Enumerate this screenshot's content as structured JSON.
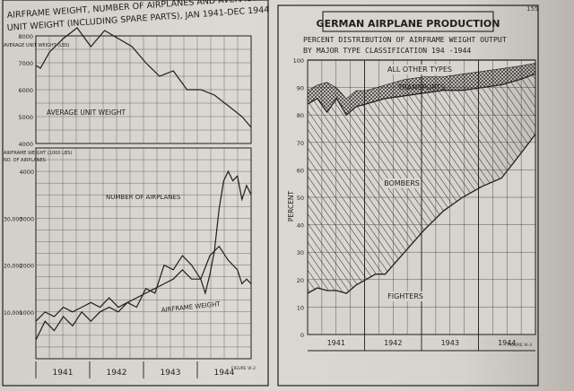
{
  "page_number": "155",
  "colors": {
    "ink": "#1e1e1e",
    "paper": "#d8d5ce",
    "edge": "#5a5753"
  },
  "chart_data": [
    {
      "type": "line",
      "title": "AIRFRAME WEIGHT, NUMBER OF AIRPLANES AND AVERAGE UNIT WEIGHT (INCLUDING SPARE PARTS), JAN 1941-DEC 1944",
      "figure": "FIGURE VI-2",
      "top_panel": {
        "ylabel": "AVERAGE UNIT WEIGHT (LBS)",
        "ylim": [
          4000,
          8000
        ],
        "y_ticks": [
          "8000",
          "7000",
          "6000",
          "5000",
          "4000"
        ],
        "series": [
          {
            "name": "AVERAGE UNIT WEIGHT",
            "x": [
              0,
              1,
              3,
              6,
              9,
              12,
              15,
              18,
              21,
              24,
              27,
              30,
              33,
              36,
              39,
              42,
              45,
              47
            ],
            "values": [
              6900,
              6800,
              7400,
              7900,
              8300,
              7600,
              8200,
              7900,
              7600,
              7000,
              6500,
              6700,
              6000,
              6000,
              5800,
              5400,
              5000,
              4600
            ]
          }
        ]
      },
      "bottom_panel": {
        "ylabel_left": "AIRFRAME WEIGHT (1000 LBS)",
        "ylabel_right": "NO. OF AIRPLANES",
        "y_ticks_left": [
          "10,000",
          "20,000",
          "30,000"
        ],
        "y_ticks_right": [
          "1000",
          "2000",
          "3000",
          "4000"
        ],
        "ylim": [
          0,
          4500
        ],
        "series": [
          {
            "name": "NUMBER OF AIRPLANES",
            "x": [
              0,
              2,
              4,
              6,
              8,
              10,
              12,
              14,
              16,
              18,
              20,
              22,
              24,
              26,
              28,
              30,
              32,
              34,
              36,
              37,
              38,
              39,
              40,
              41,
              42,
              43,
              44,
              45,
              46,
              47
            ],
            "values": [
              400,
              800,
              600,
              900,
              700,
              1000,
              800,
              1000,
              1100,
              1000,
              1200,
              1100,
              1500,
              1400,
              2000,
              1900,
              2200,
              2000,
              1700,
              1400,
              1800,
              2300,
              3200,
              3800,
              4000,
              3800,
              3900,
              3400,
              3700,
              3500
            ]
          },
          {
            "name": "AIRFRAME WEIGHT",
            "x": [
              0,
              2,
              4,
              6,
              8,
              10,
              12,
              14,
              16,
              18,
              20,
              22,
              24,
              26,
              28,
              30,
              32,
              34,
              36,
              38,
              40,
              42,
              44,
              45,
              46,
              47
            ],
            "values": [
              800,
              1000,
              900,
              1100,
              1000,
              1100,
              1200,
              1100,
              1300,
              1100,
              1200,
              1300,
              1400,
              1500,
              1600,
              1700,
              1900,
              1700,
              1700,
              2200,
              2400,
              2100,
              1900,
              1600,
              1700,
              1600
            ]
          }
        ]
      },
      "x_labels": [
        "1941",
        "1942",
        "1943",
        "1944"
      ],
      "annotations": [
        "AVERAGE UNIT WEIGHT",
        "NUMBER OF AIRPLANES",
        "AIRFRAME WEIGHT"
      ]
    },
    {
      "type": "area",
      "title": "GERMAN AIRPLANE PRODUCTION",
      "subtitle": "PERCENT DISTRIBUTION OF AIRFRAME WEIGHT OUTPUT BY MAJOR TYPE CLASSIFICATION 194 -1944",
      "figure": "FIGURE VI-3",
      "ylabel": "PERCENT",
      "ylim": [
        0,
        100
      ],
      "y_ticks": [
        "0",
        "10",
        "20",
        "30",
        "40",
        "50",
        "60",
        "70",
        "80",
        "90",
        "100"
      ],
      "x_labels": [
        "1941",
        "1942",
        "1943",
        "1944"
      ],
      "x": [
        0,
        2,
        4,
        6,
        8,
        10,
        12,
        14,
        16,
        20,
        24,
        28,
        32,
        36,
        40,
        44,
        47
      ],
      "series": [
        {
          "name": "FIGHTERS",
          "values": [
            15,
            17,
            16,
            16,
            15,
            18,
            20,
            22,
            22,
            30,
            38,
            45,
            50,
            54,
            57,
            66,
            73
          ]
        },
        {
          "name": "BOMBERS",
          "values": [
            84,
            86,
            81,
            86,
            80,
            83,
            84,
            85,
            86,
            87,
            88,
            89,
            89,
            90,
            91,
            93,
            95
          ]
        },
        {
          "name": "TRANSPORTS",
          "values": [
            89,
            91,
            92,
            90,
            86,
            89,
            89,
            90,
            91,
            93,
            94,
            94,
            95,
            96,
            97,
            98,
            99
          ]
        },
        {
          "name": "ALL OTHER TYPES",
          "values": [
            100,
            100,
            100,
            100,
            100,
            100,
            100,
            100,
            100,
            100,
            100,
            100,
            100,
            100,
            100,
            100,
            100
          ]
        }
      ],
      "annotations": [
        "ALL OTHER TYPES",
        "TRANSPORTS",
        "BOMBERS",
        "FIGHTERS"
      ]
    }
  ]
}
